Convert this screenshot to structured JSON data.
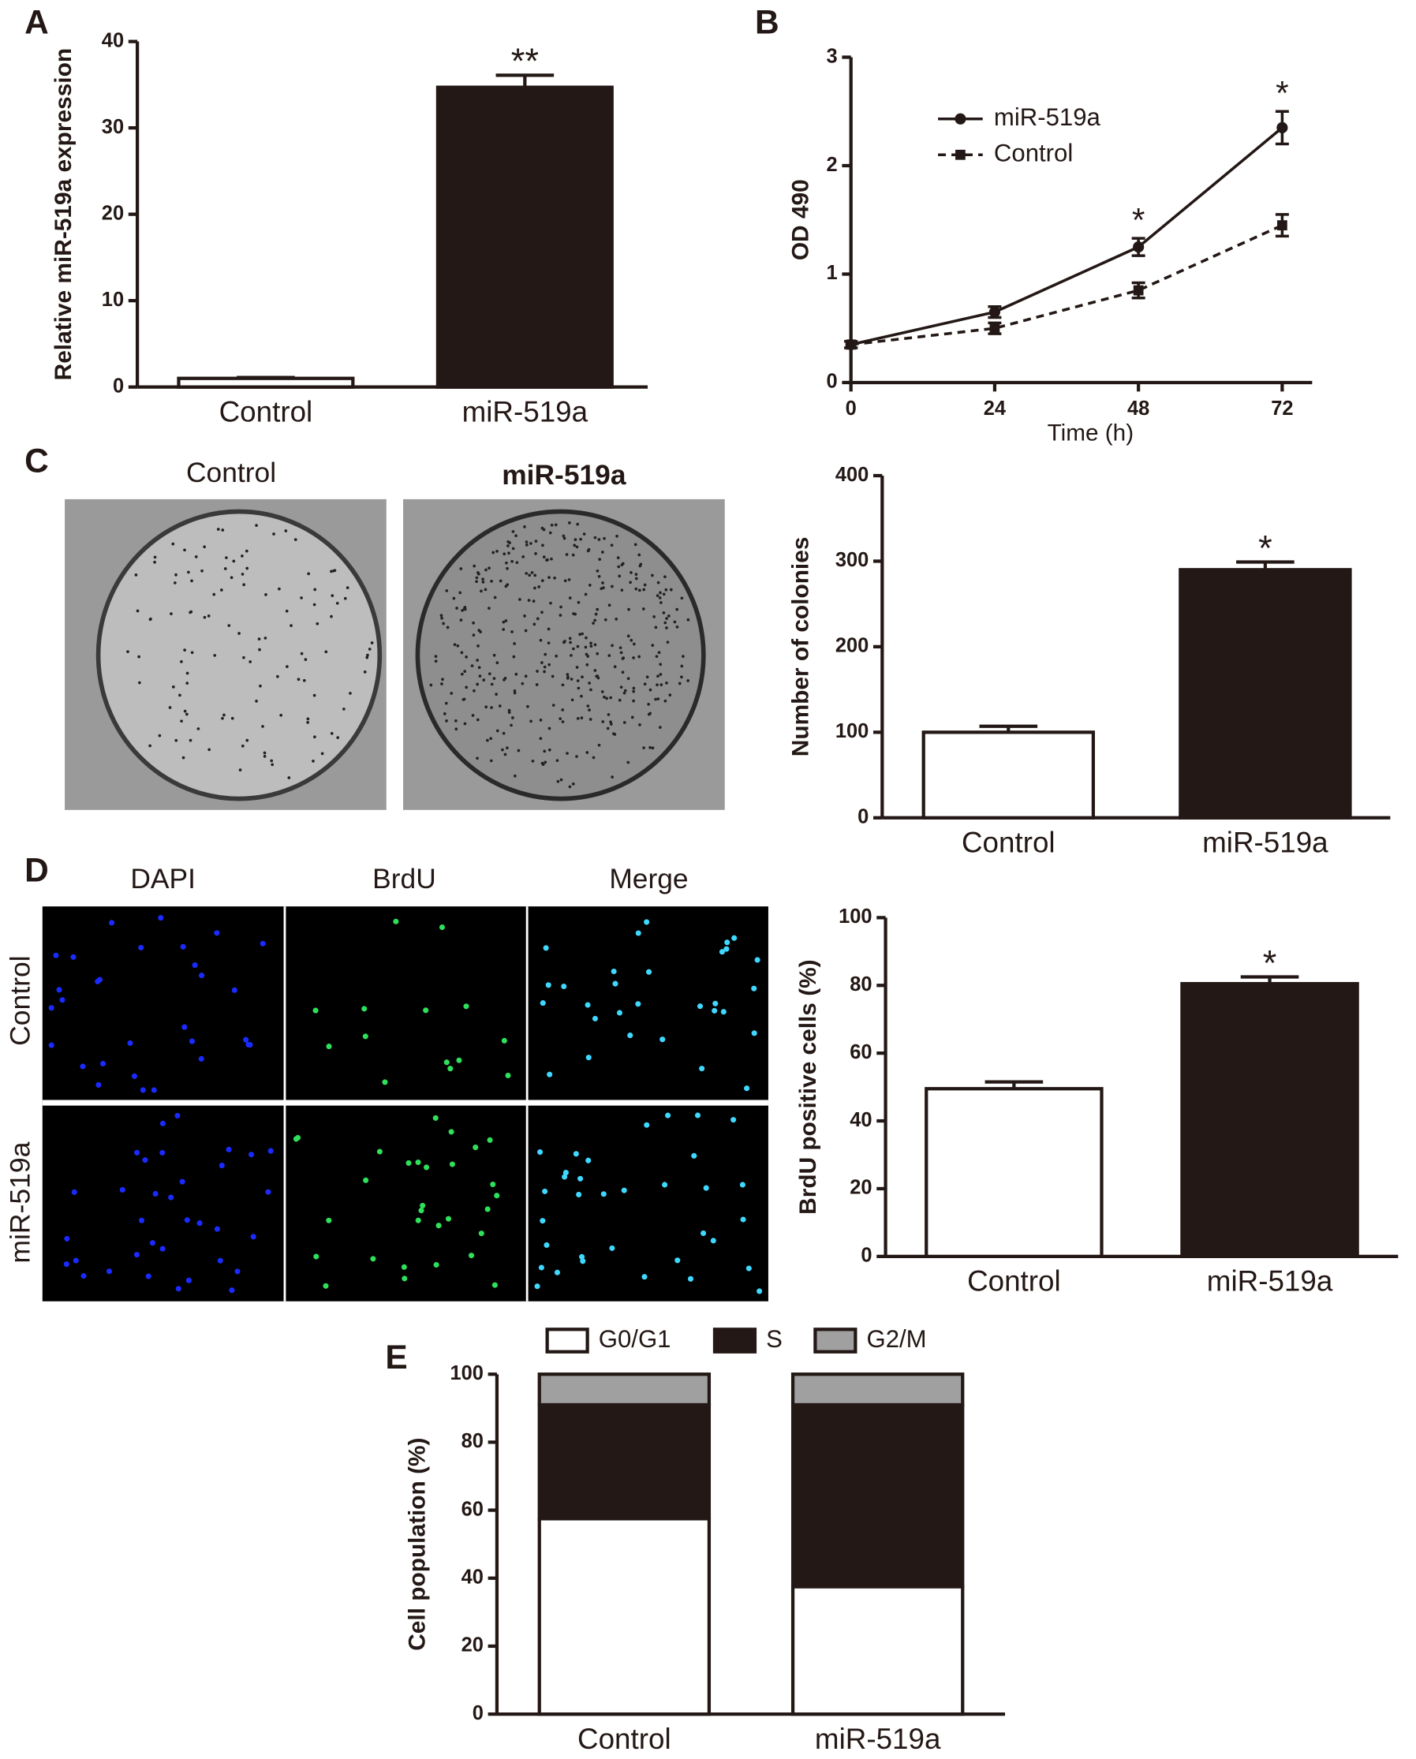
{
  "panels": [
    "A",
    "B",
    "C",
    "D",
    "E"
  ],
  "images": {
    "colony": {
      "labels": [
        "Control",
        "miR-519a"
      ]
    },
    "stain": {
      "columns": [
        "DAPI",
        "BrdU",
        "Merge"
      ],
      "rows": [
        "Control",
        "miR-519a"
      ]
    }
  },
  "chart_data": [
    {
      "type": "bar",
      "ylabel": "Relative miR-519a expression",
      "categories": [
        "Control",
        "miR-519a"
      ],
      "values": [
        1,
        34.7
      ],
      "errors": [
        0.1,
        1.4
      ],
      "colors": [
        "#ffffff",
        "#231815"
      ],
      "value_annotations": [
        null,
        "**"
      ],
      "ylim": [
        0,
        40
      ],
      "yticks": [
        0,
        10,
        20,
        30,
        40
      ]
    },
    {
      "type": "line",
      "xlabel": "Time (h)",
      "ylabel": "OD 490",
      "x": [
        0,
        24,
        48,
        72
      ],
      "series": [
        {
          "name": "miR-519a",
          "color": "#231815",
          "marker": "circle",
          "dashed": false,
          "values": [
            0.35,
            0.65,
            1.25,
            2.35
          ],
          "errors": [
            0.03,
            0.05,
            0.08,
            0.15
          ],
          "annotations": [
            null,
            null,
            "*",
            "*"
          ]
        },
        {
          "name": "Control",
          "color": "#231815",
          "marker": "square",
          "dashed": true,
          "values": [
            0.35,
            0.5,
            0.85,
            1.45
          ],
          "errors": [
            0.03,
            0.05,
            0.07,
            0.1
          ],
          "annotations": [
            null,
            null,
            null,
            null
          ]
        }
      ],
      "xlim": [
        0,
        77
      ],
      "xticks": [
        0,
        24,
        48,
        72
      ],
      "ylim": [
        0,
        3
      ],
      "yticks": [
        0,
        1,
        2,
        3
      ],
      "legend": "upper left"
    },
    {
      "type": "bar",
      "ylabel": "Number of colonies",
      "categories": [
        "Control",
        "miR-519a"
      ],
      "values": [
        100,
        290
      ],
      "errors": [
        7,
        9
      ],
      "colors": [
        "#ffffff",
        "#231815"
      ],
      "value_annotations": [
        null,
        "*"
      ],
      "ylim": [
        0,
        400
      ],
      "yticks": [
        0,
        100,
        200,
        300,
        400
      ]
    },
    {
      "type": "bar",
      "ylabel": "BrdU positive cells (%)",
      "categories": [
        "Control",
        "miR-519a"
      ],
      "values": [
        49.5,
        80.5
      ],
      "errors": [
        2,
        2
      ],
      "colors": [
        "#ffffff",
        "#231815"
      ],
      "value_annotations": [
        null,
        "*"
      ],
      "ylim": [
        0,
        100
      ],
      "yticks": [
        0,
        20,
        40,
        60,
        80,
        100
      ]
    },
    {
      "type": "stacked_bar",
      "ylabel": "Cell population (%)",
      "categories": [
        "Control",
        "miR-519a"
      ],
      "series": [
        {
          "name": "G0/G1",
          "color": "#ffffff",
          "values": [
            57.5,
            37.5
          ]
        },
        {
          "name": "S",
          "color": "#231815",
          "values": [
            33.5,
            53.5
          ]
        },
        {
          "name": "G2/M",
          "color": "#a0a0a0",
          "values": [
            9,
            9
          ]
        }
      ],
      "ylim": [
        0,
        100
      ],
      "yticks": [
        0,
        20,
        40,
        60,
        80,
        100
      ],
      "legend": "top"
    }
  ]
}
